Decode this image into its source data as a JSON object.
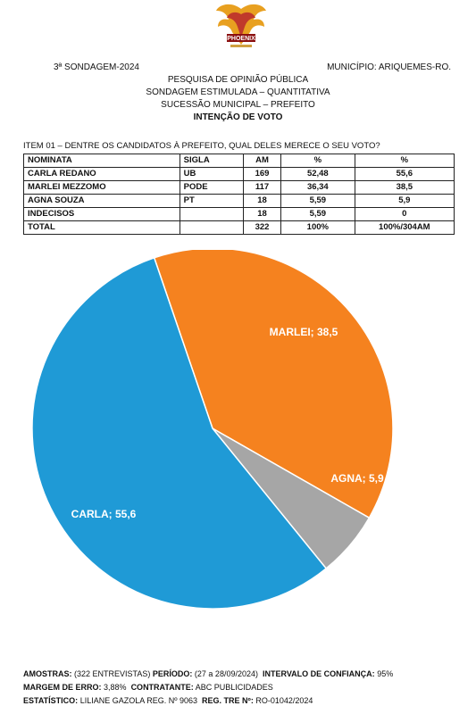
{
  "header": {
    "logo_text": "PHOENIX",
    "sondagem": "3ª SONDAGEM-2024",
    "municipio": "MUNICÍPIO: ARIQUEMES-RO.",
    "line1": "PESQUISA DE OPINIÃO PÚBLICA",
    "line2": "SONDAGEM ESTIMULADA – QUANTITATIVA",
    "line3": "SUCESSÃO MUNICIPAL – PREFEITO",
    "line4": "INTENÇÃO DE VOTO"
  },
  "question": "ITEM 01 – DENTRE OS CANDIDATOS À PREFEITO, QUAL DELES MERECE O SEU VOTO?",
  "table": {
    "headers": [
      "NOMINATA",
      "SIGLA",
      "AM",
      "%",
      "%"
    ],
    "rows": [
      [
        "CARLA REDANO",
        "UB",
        "169",
        "52,48",
        "55,6"
      ],
      [
        "MARLEI MEZZOMO",
        "PODE",
        "117",
        "36,34",
        "38,5"
      ],
      [
        "AGNA SOUZA",
        "PT",
        "18",
        "5,59",
        "5,9"
      ],
      [
        "INDECISOS",
        "",
        "18",
        "5,59",
        "0"
      ],
      [
        "TOTAL",
        "",
        "322",
        "100%",
        "100%/304AM"
      ]
    ]
  },
  "chart_data": {
    "type": "pie",
    "slices": [
      {
        "label": "MARLEI; 38,5",
        "value": 38.5,
        "color": "#f5821f"
      },
      {
        "label": "AGNA; 5,9",
        "value": 5.9,
        "color": "#a6a6a6"
      },
      {
        "label": "CARLA; 55,6",
        "value": 55.6,
        "color": "#1f9ad6"
      }
    ]
  },
  "footer": {
    "amostras_label": "AMOSTRAS:",
    "amostras_value": "(322 ENTREVISTAS)",
    "periodo_label": "PERÍODO:",
    "periodo_value": "(27 a 28/09/2024)",
    "intervalo_label": "INTERVALO DE CONFIANÇA:",
    "intervalo_value": "95%",
    "margem_label": "MARGEM DE ERRO:",
    "margem_value": "3,88%",
    "contratante_label": "CONTRATANTE:",
    "contratante_value": "ABC PUBLICIDADES",
    "estatistico_label": "ESTATÍSTICO:",
    "estatistico_value": "LILIANE GAZOLA REG. Nº 9063",
    "reg_label": "REG. TRE Nº:",
    "reg_value": "RO-01042/2024"
  }
}
